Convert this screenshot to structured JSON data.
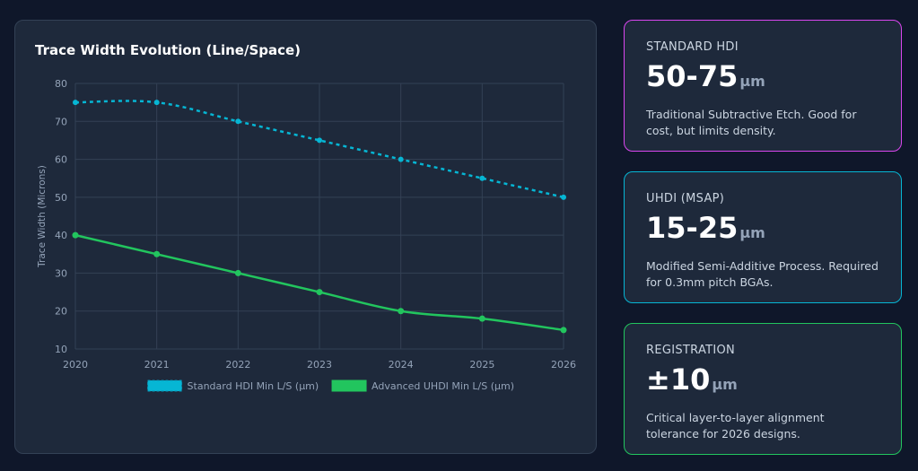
{
  "chart_card": {
    "title": "Trace Width Evolution (Line/Space)"
  },
  "chart_data": {
    "type": "line",
    "title": "Trace Width Evolution (Line/Space)",
    "xlabel": "",
    "ylabel": "Trace Width (Microns)",
    "categories": [
      "2020",
      "2021",
      "2022",
      "2023",
      "2024",
      "2025",
      "2026"
    ],
    "ylim": [
      10,
      80
    ],
    "yticks": [
      10,
      20,
      30,
      40,
      50,
      60,
      70,
      80
    ],
    "grid": true,
    "legend_position": "bottom",
    "series": [
      {
        "name": "Standard HDI Min L/S (µm)",
        "values": [
          75,
          75,
          70,
          65,
          60,
          55,
          50
        ],
        "color": "#06b6d4",
        "dashed": true
      },
      {
        "name": "Advanced UHDI Min L/S (µm)",
        "values": [
          40,
          35,
          30,
          25,
          20,
          18,
          15
        ],
        "color": "#22c55e",
        "dashed": false
      }
    ]
  },
  "stats": [
    {
      "label": "STANDARD HDI",
      "value": "50-75",
      "unit": "µm",
      "description": "Traditional Subtractive Etch. Good for cost, but limits density.",
      "border_color": "#d946ef"
    },
    {
      "label": "UHDI (MSAP)",
      "value": "15-25",
      "unit": "µm",
      "description": "Modified Semi-Additive Process. Required for 0.3mm pitch BGAs.",
      "border_color": "#06b6d4"
    },
    {
      "label": "REGISTRATION",
      "value": "±10",
      "unit": "µm",
      "description": "Critical layer-to-layer alignment tolerance for 2026 designs.",
      "border_color": "#22c55e"
    }
  ]
}
